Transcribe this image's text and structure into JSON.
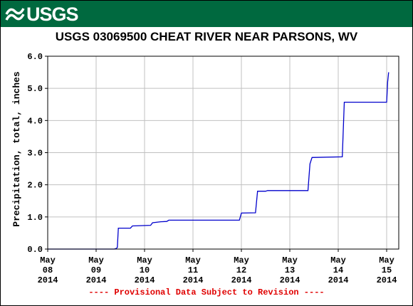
{
  "header": {
    "logo_text": "USGS",
    "logo_icon": "usgs-wave-icon",
    "brand_color": "#00693f"
  },
  "chart_data": {
    "type": "line",
    "title": "USGS 03069500 CHEAT RIVER NEAR PARSONS, WV",
    "ylabel": "Precipitation, total, inches",
    "xlabel": "",
    "ylim": [
      0.0,
      6.0
    ],
    "yticks": [
      "0.0",
      "1.0",
      "2.0",
      "3.0",
      "4.0",
      "5.0",
      "6.0"
    ],
    "xlim": [
      "2014-05-08T00:00",
      "2014-05-15T06:00"
    ],
    "xticks": [
      {
        "date": "2014-05-08",
        "month": "May",
        "day": "08",
        "year": "2014"
      },
      {
        "date": "2014-05-09",
        "month": "May",
        "day": "09",
        "year": "2014"
      },
      {
        "date": "2014-05-10",
        "month": "May",
        "day": "10",
        "year": "2014"
      },
      {
        "date": "2014-05-11",
        "month": "May",
        "day": "11",
        "year": "2014"
      },
      {
        "date": "2014-05-12",
        "month": "May",
        "day": "12",
        "year": "2014"
      },
      {
        "date": "2014-05-13",
        "month": "May",
        "day": "13",
        "year": "2014"
      },
      {
        "date": "2014-05-14",
        "month": "May",
        "day": "14",
        "year": "2014"
      },
      {
        "date": "2014-05-15",
        "month": "May",
        "day": "15",
        "year": "2014"
      }
    ],
    "grid": true,
    "series": [
      {
        "color": "#0000cc",
        "points": [
          [
            "2014-05-08T00:00",
            0.0
          ],
          [
            "2014-05-09T09:00",
            0.0
          ],
          [
            "2014-05-09T10:00",
            0.02
          ],
          [
            "2014-05-09T10:30",
            0.05
          ],
          [
            "2014-05-09T11:00",
            0.65
          ],
          [
            "2014-05-09T17:00",
            0.65
          ],
          [
            "2014-05-09T18:00",
            0.72
          ],
          [
            "2014-05-10T03:00",
            0.74
          ],
          [
            "2014-05-10T04:00",
            0.82
          ],
          [
            "2014-05-10T08:00",
            0.85
          ],
          [
            "2014-05-10T11:00",
            0.86
          ],
          [
            "2014-05-10T12:00",
            0.9
          ],
          [
            "2014-05-11T23:00",
            0.9
          ],
          [
            "2014-05-12T00:00",
            1.12
          ],
          [
            "2014-05-12T07:00",
            1.13
          ],
          [
            "2014-05-12T08:00",
            1.8
          ],
          [
            "2014-05-12T12:00",
            1.8
          ],
          [
            "2014-05-12T13:00",
            1.82
          ],
          [
            "2014-05-13T09:00",
            1.82
          ],
          [
            "2014-05-13T10:00",
            2.65
          ],
          [
            "2014-05-13T11:00",
            2.85
          ],
          [
            "2014-05-14T02:00",
            2.87
          ],
          [
            "2014-05-14T03:00",
            4.57
          ],
          [
            "2014-05-15T00:00",
            4.57
          ],
          [
            "2014-05-15T00:30",
            5.2
          ],
          [
            "2014-05-15T01:00",
            5.5
          ]
        ]
      }
    ]
  },
  "footnote": "---- Provisional Data Subject to Revision ----"
}
